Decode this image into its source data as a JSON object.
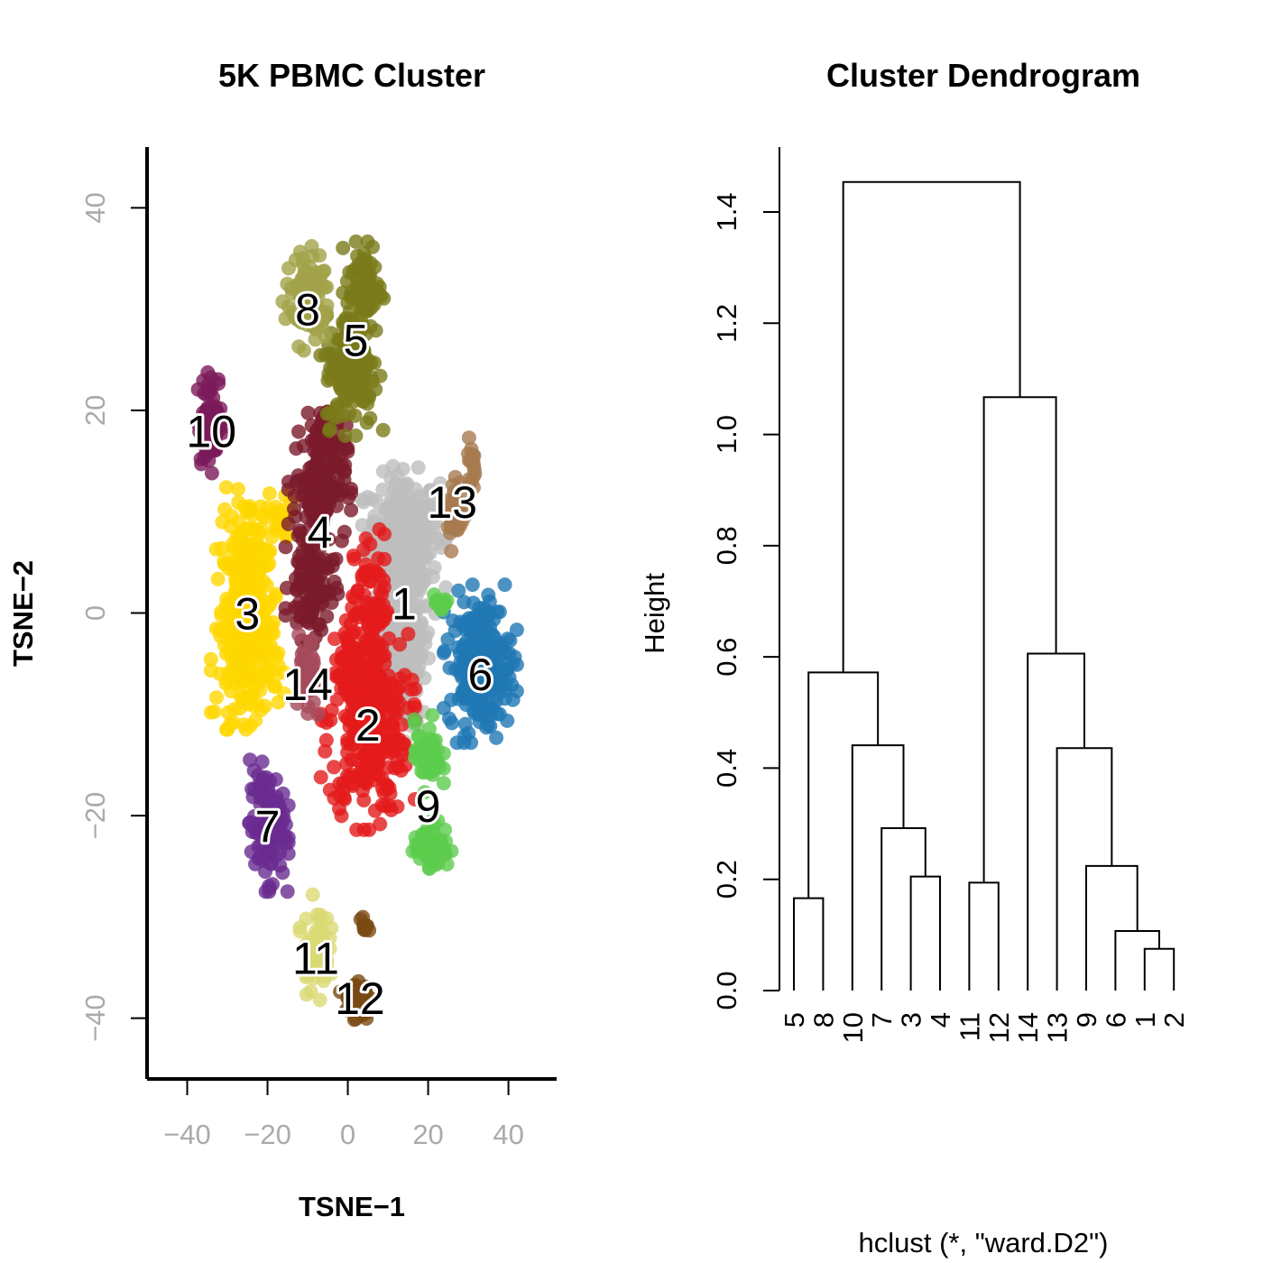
{
  "chart_data": [
    {
      "type": "scatter",
      "title": "5K PBMC Cluster",
      "xlabel": "TSNE−1",
      "ylabel": "TSNE−2",
      "xlim": [
        -50,
        52
      ],
      "ylim": [
        -46,
        46
      ],
      "xticks": [
        -40,
        -20,
        0,
        20,
        40
      ],
      "xtick_labels": [
        "−40",
        "−20",
        "0",
        "20",
        "40"
      ],
      "yticks": [
        -40,
        -20,
        0,
        20,
        40
      ],
      "ytick_labels": [
        "−40",
        "−20",
        "0",
        "20",
        "40"
      ],
      "axis_label_color": "#aaaaaa",
      "grid": false,
      "clusters": [
        {
          "label": "1",
          "color": "#BEBEBE",
          "center": [
            14,
            1
          ],
          "blobs": [
            [
              14,
              8,
              8,
              5,
              260
            ],
            [
              14,
              -3,
              6,
              8,
              240
            ]
          ]
        },
        {
          "label": "2",
          "color": "#E41A1C",
          "center": [
            5,
            -11
          ],
          "blobs": [
            [
              5,
              -11,
              9,
              8,
              300
            ],
            [
              6,
              0,
              4,
              7,
              80
            ],
            [
              1,
              -5,
              3,
              5,
              40
            ]
          ]
        },
        {
          "label": "3",
          "color": "#FFD700",
          "center": [
            -25,
            0
          ],
          "blobs": [
            [
              -25,
              5,
              6,
              6,
              130
            ],
            [
              -25,
              -5,
              7,
              5,
              150
            ],
            [
              -25,
              0,
              5,
              5,
              90
            ],
            [
              -17,
              9,
              3,
              2,
              25
            ]
          ]
        },
        {
          "label": "4",
          "color": "#7B1A2A",
          "center": [
            -7,
            8
          ],
          "blobs": [
            [
              -9,
              3,
              5,
              5,
              110
            ],
            [
              -7,
              13,
              6,
              5,
              140
            ],
            [
              -6,
              18,
              3,
              2,
              30
            ]
          ]
        },
        {
          "label": "5",
          "color": "#7A7A1A",
          "center": [
            2,
            27
          ],
          "blobs": [
            [
              4,
              32,
              4,
              4,
              90
            ],
            [
              1,
              24,
              6,
              5,
              150
            ]
          ]
        },
        {
          "label": "6",
          "color": "#1F78B4",
          "center": [
            33,
            -6
          ],
          "blobs": [
            [
              33,
              -5,
              7,
              6,
              240
            ]
          ]
        },
        {
          "label": "7",
          "color": "#6A2C91",
          "center": [
            -20,
            -21
          ],
          "blobs": [
            [
              -20,
              -21,
              4,
              5,
              130
            ]
          ]
        },
        {
          "label": "8",
          "color": "#A3A34A",
          "center": [
            -10,
            30
          ],
          "blobs": [
            [
              -10,
              31,
              5,
              4,
              110
            ]
          ]
        },
        {
          "label": "9",
          "color": "#5CCC4E",
          "center": [
            20,
            -19
          ],
          "blobs": [
            [
              20,
              -14,
              3,
              3,
              50
            ],
            [
              21,
              -23,
              4,
              2,
              60
            ],
            [
              23,
              1,
              2,
              1,
              15
            ]
          ]
        },
        {
          "label": "10",
          "color": "#7B1A5A",
          "center": [
            -34,
            18
          ],
          "blobs": [
            [
              -34,
              19,
              3,
              4,
              80
            ]
          ]
        },
        {
          "label": "11",
          "color": "#DADA74",
          "center": [
            -8,
            -34
          ],
          "blobs": [
            [
              -8,
              -33,
              3,
              4,
              60
            ]
          ]
        },
        {
          "label": "12",
          "color": "#7A4A14",
          "center": [
            3,
            -38
          ],
          "blobs": [
            [
              2,
              -38,
              3,
              2,
              50
            ],
            [
              4,
              -31,
              1,
              1,
              10
            ]
          ]
        },
        {
          "label": "13",
          "color": "#A87A50",
          "center": [
            26,
            11
          ],
          "blobs": [
            [
              27,
              10,
              2,
              3,
              40
            ],
            [
              31,
              15,
              1,
              2,
              20
            ]
          ]
        },
        {
          "label": "14",
          "color": "#A54A5A",
          "center": [
            -10,
            -7
          ],
          "blobs": [
            [
              -10,
              -7,
              2,
              4,
              40
            ]
          ]
        }
      ]
    },
    {
      "type": "dendrogram",
      "title": "Cluster Dendrogram",
      "ylabel": "Height",
      "xlabel": "hclust (*, \"ward.D2\")",
      "ylim": [
        0,
        1.5
      ],
      "yticks": [
        0.0,
        0.2,
        0.4,
        0.6,
        0.8,
        1.0,
        1.2,
        1.4
      ],
      "ytick_labels": [
        "0.0",
        "0.2",
        "0.4",
        "0.6",
        "0.8",
        "1.0",
        "1.2",
        "1.4"
      ],
      "leaf_order": [
        "5",
        "8",
        "10",
        "7",
        "3",
        "4",
        "11",
        "12",
        "14",
        "13",
        "9",
        "6",
        "1",
        "2"
      ],
      "merges": [
        {
          "a": "5",
          "b": "8",
          "height": 0.166
        },
        {
          "a": "3",
          "b": "4",
          "height": 0.205
        },
        {
          "a": "7",
          "b": "m2",
          "height": 0.292
        },
        {
          "a": "10",
          "b": "m3",
          "height": 0.441
        },
        {
          "a": "m1",
          "b": "m4",
          "height": 0.572
        },
        {
          "a": "11",
          "b": "12",
          "height": 0.194
        },
        {
          "a": "1",
          "b": "2",
          "height": 0.075
        },
        {
          "a": "6",
          "b": "m7",
          "height": 0.107
        },
        {
          "a": "9",
          "b": "m8",
          "height": 0.224
        },
        {
          "a": "13",
          "b": "m9",
          "height": 0.436
        },
        {
          "a": "14",
          "b": "m10",
          "height": 0.606
        },
        {
          "a": "m6",
          "b": "m11",
          "height": 1.067
        },
        {
          "a": "m5",
          "b": "m12",
          "height": 1.454
        }
      ]
    }
  ]
}
